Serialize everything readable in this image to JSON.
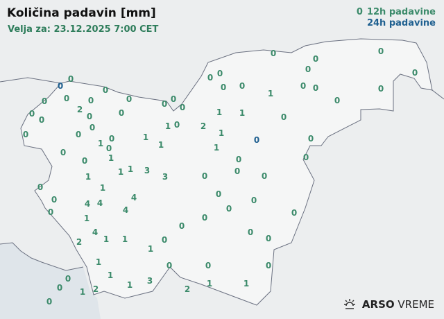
{
  "header": {
    "title": "Količina padavin [mm]",
    "valid_at": "Velja za: 23.12.2025 7:00 CET"
  },
  "legend": {
    "items": [
      {
        "symbol": "0",
        "label": "12h padavine",
        "color": "#3b8a6a"
      },
      {
        "label": "24h padavine",
        "color": "#1f6090"
      }
    ]
  },
  "colors": {
    "h12": "#3b8a6a",
    "h24": "#1f6090",
    "land": "#f4f5f5",
    "sea": "#dfe5ea",
    "border": "#6a7080"
  },
  "logo": {
    "icon": "sun-icon",
    "brand": "ARSO",
    "product": "VREME"
  },
  "stations": [
    {
      "v": "0",
      "t": "12h"
    },
    {
      "v": "0",
      "t": "12h"
    },
    {
      "v": "0",
      "t": "12h"
    },
    {
      "v": "0",
      "t": "12h"
    },
    {
      "v": "0",
      "t": "12h"
    },
    {
      "v": "0",
      "t": "12h"
    },
    {
      "v": "0",
      "t": "12h"
    },
    {
      "v": "0",
      "t": "12h"
    },
    {
      "v": "0",
      "t": "12h"
    },
    {
      "v": "0",
      "t": "12h"
    },
    {
      "v": "1",
      "t": "12h"
    },
    {
      "v": "0",
      "t": "12h"
    },
    {
      "v": "0",
      "t": "12h"
    },
    {
      "v": "0",
      "t": "12h"
    },
    {
      "v": "0",
      "t": "12h"
    },
    {
      "v": "0",
      "t": "12h"
    },
    {
      "v": "0",
      "t": "12h"
    },
    {
      "v": "0",
      "t": "12h"
    },
    {
      "v": "0",
      "t": "12h"
    },
    {
      "v": "0",
      "t": "12h"
    },
    {
      "v": "0",
      "t": "12h"
    },
    {
      "v": "0",
      "t": "12h"
    },
    {
      "v": "0",
      "t": "12h"
    },
    {
      "v": "2",
      "t": "12h"
    },
    {
      "v": "0",
      "t": "12h"
    },
    {
      "v": "0",
      "t": "12h"
    },
    {
      "v": "0",
      "t": "12h"
    },
    {
      "v": "0",
      "t": "12h"
    },
    {
      "v": "1",
      "t": "12h"
    },
    {
      "v": "1",
      "t": "12h"
    },
    {
      "v": "0",
      "t": "12h"
    },
    {
      "v": "0",
      "t": "12h"
    },
    {
      "v": "0",
      "t": "12h"
    },
    {
      "v": "0",
      "t": "12h"
    },
    {
      "v": "1",
      "t": "12h"
    },
    {
      "v": "0",
      "t": "12h"
    },
    {
      "v": "2",
      "t": "12h"
    },
    {
      "v": "1",
      "t": "12h"
    },
    {
      "v": "1",
      "t": "12h"
    },
    {
      "v": "1",
      "t": "12h"
    },
    {
      "v": "1",
      "t": "12h"
    },
    {
      "v": "0",
      "t": "12h"
    },
    {
      "v": "0",
      "t": "12h"
    },
    {
      "v": "1",
      "t": "12h"
    },
    {
      "v": "1",
      "t": "12h"
    },
    {
      "v": "0",
      "t": "12h"
    },
    {
      "v": "0",
      "t": "12h"
    },
    {
      "v": "0",
      "t": "12h"
    },
    {
      "v": "0",
      "t": "12h"
    },
    {
      "v": "0",
      "t": "12h"
    },
    {
      "v": "1",
      "t": "12h"
    },
    {
      "v": "1",
      "t": "12h"
    },
    {
      "v": "3",
      "t": "12h"
    },
    {
      "v": "3",
      "t": "12h"
    },
    {
      "v": "0",
      "t": "12h"
    },
    {
      "v": "0",
      "t": "12h"
    },
    {
      "v": "0",
      "t": "12h"
    },
    {
      "v": "1",
      "t": "12h"
    },
    {
      "v": "1",
      "t": "12h"
    },
    {
      "v": "0",
      "t": "12h"
    },
    {
      "v": "0",
      "t": "12h"
    },
    {
      "v": "0",
      "t": "12h"
    },
    {
      "v": "4",
      "t": "12h"
    },
    {
      "v": "4",
      "t": "12h"
    },
    {
      "v": "4",
      "t": "12h"
    },
    {
      "v": "4",
      "t": "12h"
    },
    {
      "v": "0",
      "t": "12h"
    },
    {
      "v": "0",
      "t": "12h"
    },
    {
      "v": "0",
      "t": "12h"
    },
    {
      "v": "0",
      "t": "12h"
    },
    {
      "v": "1",
      "t": "12h"
    },
    {
      "v": "4",
      "t": "12h"
    },
    {
      "v": "1",
      "t": "12h"
    },
    {
      "v": "1",
      "t": "12h"
    },
    {
      "v": "2",
      "t": "12h"
    },
    {
      "v": "0",
      "t": "12h"
    },
    {
      "v": "0",
      "t": "12h"
    },
    {
      "v": "0",
      "t": "12h"
    },
    {
      "v": "1",
      "t": "12h"
    },
    {
      "v": "0",
      "t": "12h"
    },
    {
      "v": "0",
      "t": "12h"
    },
    {
      "v": "1",
      "t": "12h"
    },
    {
      "v": "1",
      "t": "12h"
    },
    {
      "v": "0",
      "t": "12h"
    },
    {
      "v": "0",
      "t": "12h"
    },
    {
      "v": "0",
      "t": "12h"
    },
    {
      "v": "0",
      "t": "12h"
    },
    {
      "v": "0",
      "t": "12h"
    },
    {
      "v": "1",
      "t": "12h"
    },
    {
      "v": "2",
      "t": "12h"
    },
    {
      "v": "1",
      "t": "12h"
    },
    {
      "v": "3",
      "t": "12h"
    },
    {
      "v": "2",
      "t": "12h"
    },
    {
      "v": "1",
      "t": "12h"
    },
    {
      "v": "1",
      "t": "12h"
    },
    {
      "v": "0",
      "t": "12h"
    },
    {
      "v": "0",
      "t": "24h"
    },
    {
      "v": "0",
      "t": "24h"
    }
  ]
}
